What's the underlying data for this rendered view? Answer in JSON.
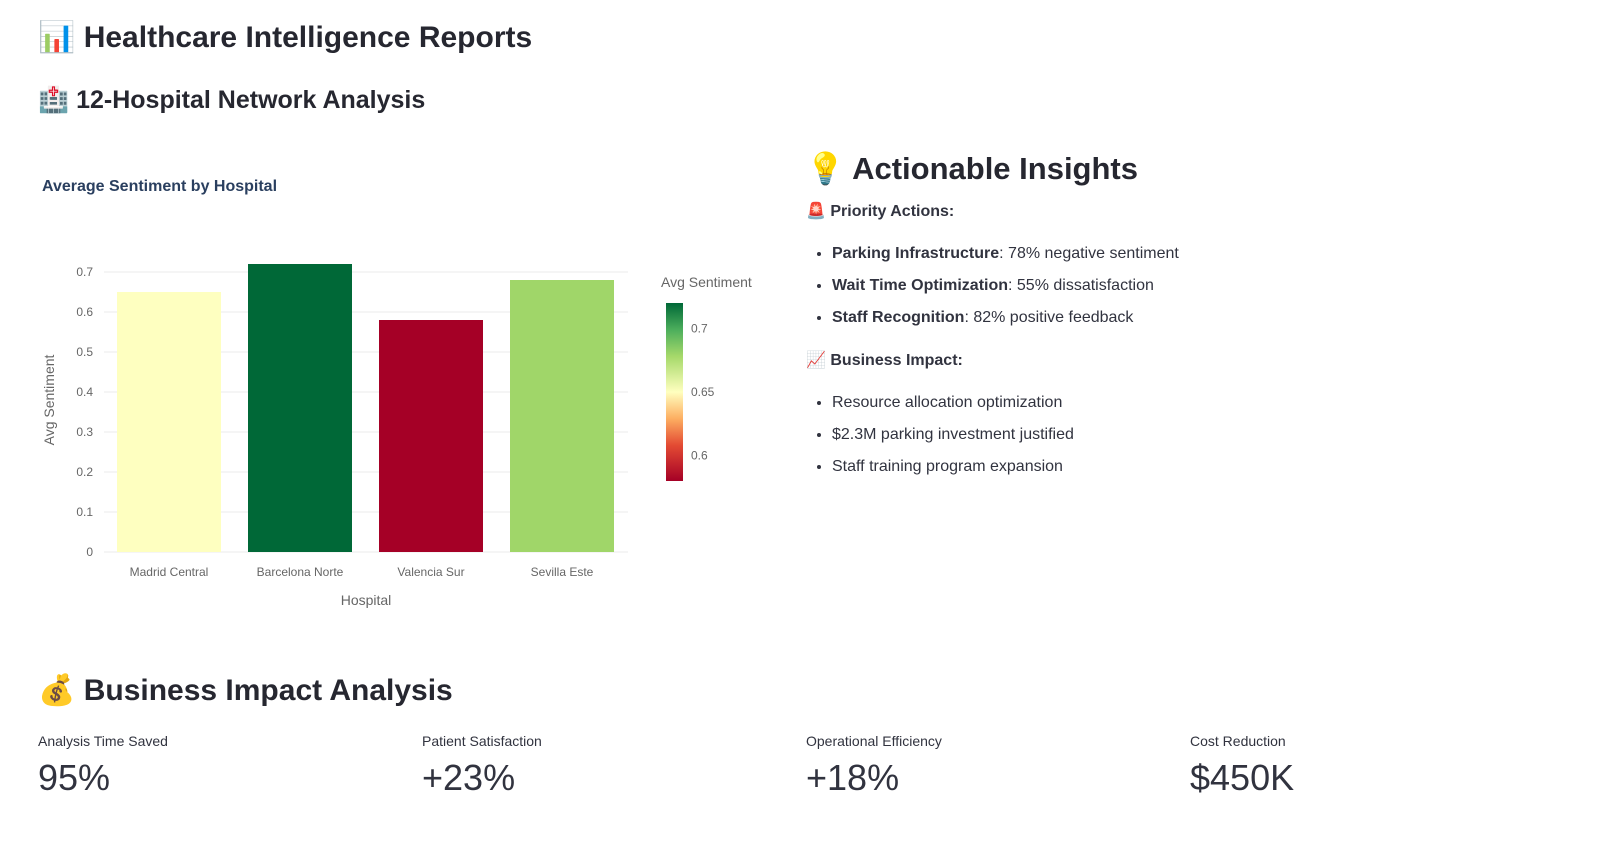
{
  "header": {
    "title_icon": "📊",
    "title": "Healthcare Intelligence Reports",
    "subtitle_icon": "🏥",
    "subtitle": "12-Hospital Network Analysis"
  },
  "chart_data": {
    "type": "bar",
    "title": "Average Sentiment by Hospital",
    "categories": [
      "Madrid Central",
      "Barcelona Norte",
      "Valencia Sur",
      "Sevilla Este"
    ],
    "values": [
      0.65,
      0.72,
      0.58,
      0.68
    ],
    "xlabel": "Hospital",
    "ylabel": "Avg Sentiment",
    "ylim": [
      0,
      0.7
    ],
    "yticks": [
      "0",
      "0.1",
      "0.2",
      "0.3",
      "0.4",
      "0.5",
      "0.6",
      "0.7"
    ],
    "grid": true,
    "colorbar": {
      "title": "Avg Sentiment",
      "range": [
        0.58,
        0.72
      ],
      "ticks": [
        "0.6",
        "0.65",
        "0.7"
      ],
      "colorscale": "RdYlGn"
    },
    "bar_colors": [
      "#feffc0",
      "#006837",
      "#a50026",
      "#a0d669"
    ]
  },
  "insights": {
    "title_icon": "💡",
    "title": "Actionable Insights",
    "priority_icon": "🚨",
    "priority_label": "Priority Actions:",
    "priority": [
      {
        "bold": "Parking Infrastructure",
        "text": ": 78% negative sentiment"
      },
      {
        "bold": "Wait Time Optimization",
        "text": ": 55% dissatisfaction"
      },
      {
        "bold": "Staff Recognition",
        "text": ": 82% positive feedback"
      }
    ],
    "impact_icon": "📈",
    "impact_label": "Business Impact:",
    "impact": [
      "Resource allocation optimization",
      "$2.3M parking investment justified",
      "Staff training program expansion"
    ]
  },
  "business": {
    "icon": "💰",
    "title": "Business Impact Analysis",
    "metrics": [
      {
        "label": "Analysis Time Saved",
        "value": "95%"
      },
      {
        "label": "Patient Satisfaction",
        "value": "+23%"
      },
      {
        "label": "Operational Efficiency",
        "value": "+18%"
      },
      {
        "label": "Cost Reduction",
        "value": "$450K"
      }
    ]
  }
}
